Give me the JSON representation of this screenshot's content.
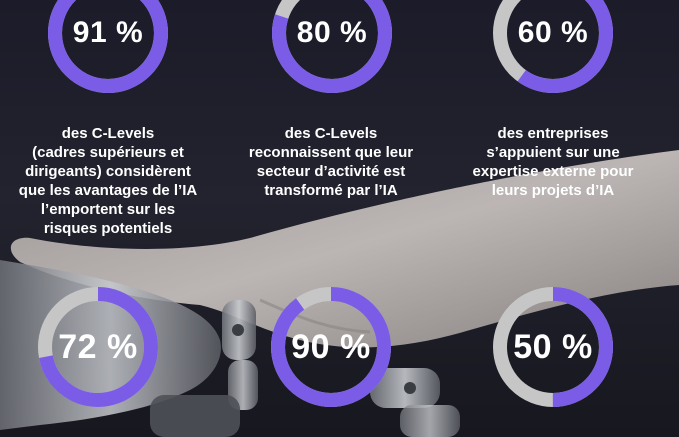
{
  "colors": {
    "accent": "#7b5ce6",
    "track": "#c6c6c6",
    "text": "#ffffff"
  },
  "stats": [
    {
      "value": 91,
      "label": "91 %",
      "text": "des C-Levels\n(cadres supérieurs et dirigeants) considèrent que les avantages de l’IA l’emportent sur les risques potentiels"
    },
    {
      "value": 80,
      "label": "80 %",
      "text": "des C-Levels reconnaissent que leur secteur d’activité est transformé par l’IA"
    },
    {
      "value": 60,
      "label": "60 %",
      "text": "des entreprises s’appuient sur une expertise externe pour leurs projets d’IA"
    },
    {
      "value": 72,
      "label": "72 %",
      "text": ""
    },
    {
      "value": 90,
      "label": "90 %",
      "text": ""
    },
    {
      "value": 50,
      "label": "50 %",
      "text": ""
    }
  ]
}
